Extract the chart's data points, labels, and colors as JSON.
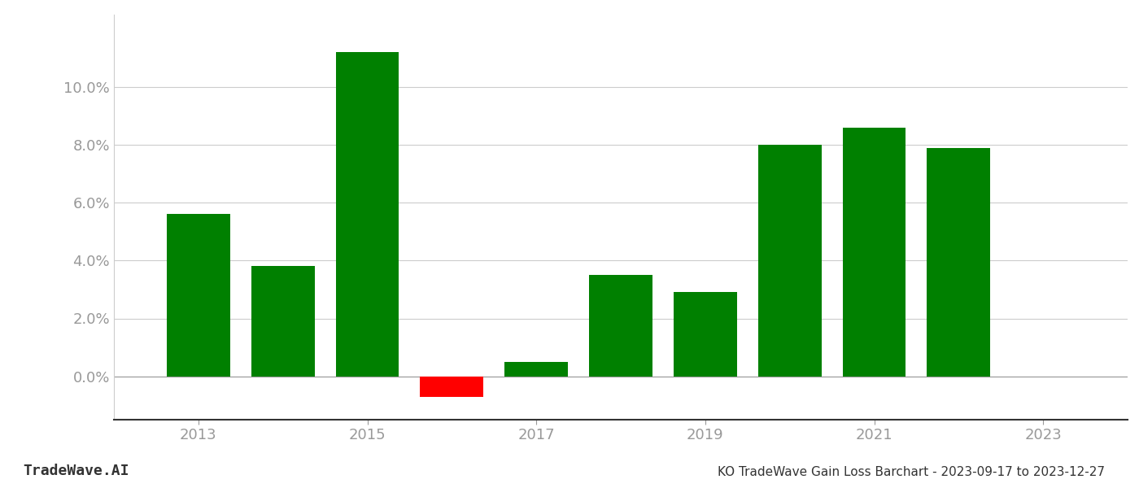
{
  "years": [
    2013,
    2014,
    2015,
    2016,
    2017,
    2018,
    2019,
    2020,
    2021,
    2022
  ],
  "values": [
    0.056,
    0.038,
    0.112,
    -0.007,
    0.005,
    0.035,
    0.029,
    0.08,
    0.086,
    0.079
  ],
  "colors": [
    "#008000",
    "#008000",
    "#008000",
    "#ff0000",
    "#008000",
    "#008000",
    "#008000",
    "#008000",
    "#008000",
    "#008000"
  ],
  "title": "KO TradeWave Gain Loss Barchart - 2023-09-17 to 2023-12-27",
  "watermark": "TradeWave.AI",
  "ylim": [
    -0.015,
    0.125
  ],
  "yticks": [
    0.0,
    0.02,
    0.04,
    0.06,
    0.08,
    0.1
  ],
  "xticks": [
    2013,
    2015,
    2017,
    2019,
    2021,
    2023
  ],
  "xlim": [
    2012.0,
    2024.0
  ],
  "bar_width": 0.75,
  "background_color": "#ffffff",
  "grid_color": "#cccccc",
  "axis_label_color": "#999999",
  "title_fontsize": 11,
  "watermark_fontsize": 13,
  "tick_fontsize": 13
}
